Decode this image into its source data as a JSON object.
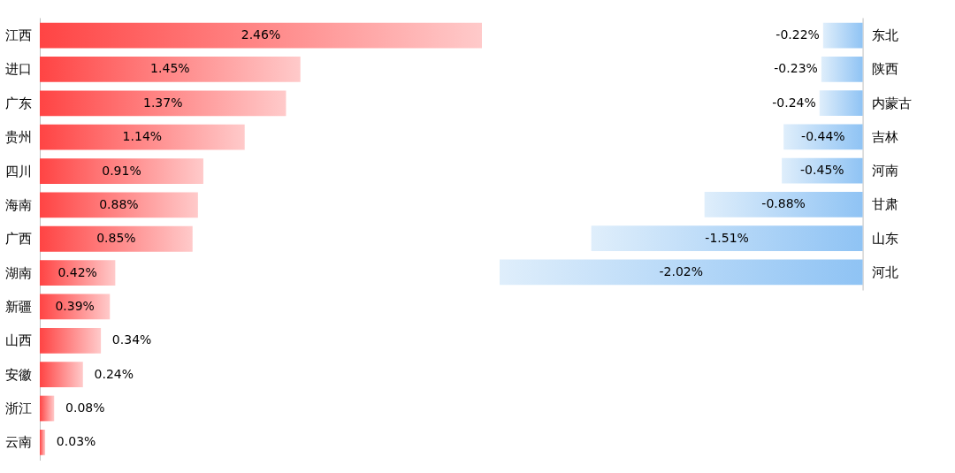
{
  "chart_data": [
    {
      "type": "bar",
      "orientation": "horizontal",
      "color": "#ff4444",
      "categories": [
        "江西",
        "进口",
        "广东",
        "贵州",
        "四川",
        "海南",
        "广西",
        "湖南",
        "新疆",
        "山西",
        "安徽",
        "浙江",
        "云南"
      ],
      "values": [
        2.46,
        1.45,
        1.37,
        1.14,
        0.91,
        0.88,
        0.85,
        0.42,
        0.39,
        0.34,
        0.24,
        0.08,
        0.03
      ],
      "value_labels": [
        "2.46%",
        "1.45%",
        "1.37%",
        "1.14%",
        "0.91%",
        "0.88%",
        "0.85%",
        "0.42%",
        "0.39%",
        "0.34%",
        "0.24%",
        "0.08%",
        "0.03%"
      ]
    },
    {
      "type": "bar",
      "orientation": "horizontal",
      "color": "#8fc3f4",
      "categories": [
        "东北",
        "陕西",
        "内蒙古",
        "吉林",
        "河南",
        "甘肃",
        "山东",
        "河北"
      ],
      "values": [
        -0.22,
        -0.23,
        -0.24,
        -0.44,
        -0.45,
        -0.88,
        -1.51,
        -2.02
      ],
      "value_labels": [
        "-0.22%",
        "-0.23%",
        "-0.24%",
        "-0.44%",
        "-0.45%",
        "-0.88%",
        "-1.51%",
        "-2.02%"
      ]
    }
  ]
}
